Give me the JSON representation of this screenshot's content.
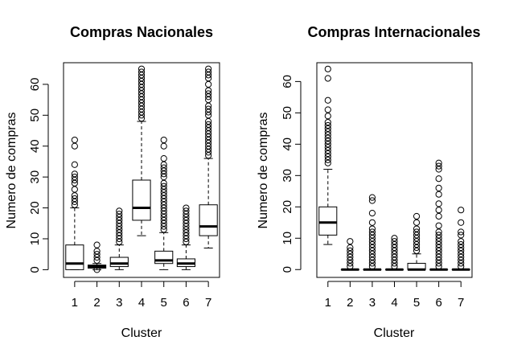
{
  "chart_data": [
    {
      "type": "boxplot",
      "title": "Compras Nacionales",
      "xlabel": "Cluster",
      "ylabel": "Numero de compras",
      "categories": [
        "1",
        "2",
        "3",
        "4",
        "5",
        "6",
        "7"
      ],
      "yticks": [
        0,
        10,
        20,
        30,
        40,
        50,
        60
      ],
      "ylim": [
        -2.5,
        67
      ],
      "boxes": [
        {
          "lower_whisker": 0,
          "q1": 0,
          "median": 2,
          "q3": 8,
          "upper_whisker": 20,
          "outliers": [
            21,
            22,
            23,
            24,
            26,
            28,
            29,
            30,
            31,
            34,
            40,
            42
          ]
        },
        {
          "lower_whisker": 0,
          "q1": 0.5,
          "median": 1,
          "q3": 1.5,
          "upper_whisker": 2,
          "outliers": [
            0,
            3,
            4,
            5,
            6,
            8
          ]
        },
        {
          "lower_whisker": 0,
          "q1": 1,
          "median": 2,
          "q3": 4,
          "upper_whisker": 8,
          "outliers": [
            9,
            10,
            11,
            12,
            13,
            14,
            15,
            16,
            17,
            18,
            19
          ]
        },
        {
          "lower_whisker": 11,
          "q1": 16,
          "median": 20,
          "q3": 29,
          "upper_whisker": 48,
          "outliers": [
            49,
            50,
            51,
            52,
            53,
            54,
            55,
            56,
            57,
            58,
            59,
            60,
            61,
            62,
            63,
            64,
            65
          ]
        },
        {
          "lower_whisker": 0,
          "q1": 2,
          "median": 3,
          "q3": 6,
          "upper_whisker": 12,
          "outliers": [
            13,
            14,
            15,
            16,
            17,
            18,
            19,
            20,
            21,
            22,
            23,
            24,
            25,
            26,
            27,
            28,
            30,
            31,
            32,
            33,
            34,
            36,
            40,
            42
          ]
        },
        {
          "lower_whisker": 0,
          "q1": 1,
          "median": 2,
          "q3": 3.5,
          "upper_whisker": 8,
          "outliers": [
            9,
            10,
            11,
            12,
            13,
            14,
            15,
            16,
            17,
            18,
            19,
            20
          ]
        },
        {
          "lower_whisker": 7,
          "q1": 11,
          "median": 14,
          "q3": 21,
          "upper_whisker": 36,
          "outliers": [
            37,
            38,
            39,
            40,
            41,
            42,
            43,
            44,
            45,
            46,
            47,
            48,
            50,
            51,
            52,
            53,
            55,
            56,
            57,
            58,
            60,
            62,
            63,
            64,
            65
          ]
        }
      ]
    },
    {
      "type": "boxplot",
      "title": "Compras Internacionales",
      "xlabel": "Cluster",
      "ylabel": "Numero de compras",
      "categories": [
        "1",
        "2",
        "3",
        "4",
        "5",
        "6",
        "7"
      ],
      "yticks": [
        0,
        10,
        20,
        30,
        40,
        50,
        60
      ],
      "ylim": [
        -2.5,
        66
      ],
      "boxes": [
        {
          "lower_whisker": 8,
          "q1": 11,
          "median": 15,
          "q3": 20,
          "upper_whisker": 32,
          "outliers": [
            34,
            35,
            36,
            37,
            38,
            39,
            40,
            41,
            42,
            43,
            44,
            45,
            46,
            47,
            49,
            51,
            54,
            61,
            64
          ]
        },
        {
          "lower_whisker": 0,
          "q1": 0,
          "median": 0,
          "q3": 0,
          "upper_whisker": 0,
          "outliers": [
            1,
            2,
            3,
            4,
            5,
            6,
            7,
            9
          ]
        },
        {
          "lower_whisker": 0,
          "q1": 0,
          "median": 0,
          "q3": 0,
          "upper_whisker": 0,
          "outliers": [
            1,
            2,
            3,
            4,
            5,
            6,
            7,
            8,
            9,
            10,
            11,
            12,
            13,
            15,
            18,
            22,
            23
          ]
        },
        {
          "lower_whisker": 0,
          "q1": 0,
          "median": 0,
          "q3": 0,
          "upper_whisker": 0,
          "outliers": [
            1,
            2,
            3,
            4,
            5,
            6,
            7,
            8,
            9,
            10
          ]
        },
        {
          "lower_whisker": 0,
          "q1": 0,
          "median": 0,
          "q3": 2,
          "upper_whisker": 5,
          "outliers": [
            6,
            7,
            8,
            9,
            10,
            11,
            12,
            13,
            15,
            17
          ]
        },
        {
          "lower_whisker": 0,
          "q1": 0,
          "median": 0,
          "q3": 0,
          "upper_whisker": 0,
          "outliers": [
            1,
            2,
            3,
            4,
            5,
            6,
            7,
            8,
            9,
            10,
            11,
            12,
            14,
            17,
            19,
            21,
            24,
            26,
            29,
            32,
            33,
            34
          ]
        },
        {
          "lower_whisker": 0,
          "q1": 0,
          "median": 0,
          "q3": 0,
          "upper_whisker": 0,
          "outliers": [
            1,
            2,
            3,
            4,
            5,
            6,
            7,
            8,
            9,
            11,
            12,
            15,
            19
          ]
        }
      ]
    }
  ]
}
